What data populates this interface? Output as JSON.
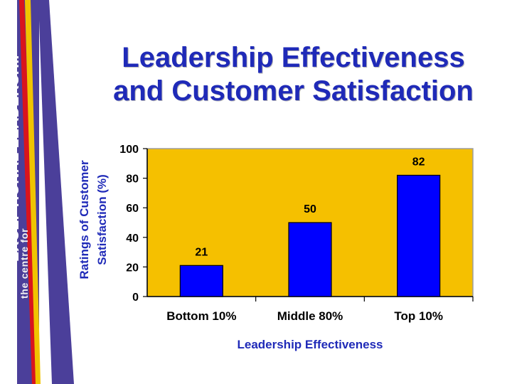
{
  "branding": {
    "top_line": "the centre for",
    "main_line": "EXCEPTIONAL LEADERSHIP"
  },
  "slide": {
    "title_line_1": "Leadership Effectiveness",
    "title_line_2": "and Customer Satisfaction"
  },
  "colors": {
    "accent_blue": "#0000ff",
    "chart_background": "#f5c000",
    "ribbon_purple": "#4b3f9a",
    "ribbon_red": "#d9141d",
    "ribbon_yellow": "#f0c400"
  },
  "chart_data": {
    "type": "bar",
    "categories": [
      "Bottom 10%",
      "Middle 80%",
      "Top 10%"
    ],
    "values": [
      21,
      50,
      82
    ],
    "xlabel": "Leadership Effectiveness",
    "ylabel_lines": [
      "Ratings of Customer",
      "Satisfaction (%)"
    ],
    "ylim": [
      0,
      100
    ],
    "yticks": [
      0,
      20,
      40,
      60,
      80,
      100
    ],
    "data_labels": [
      "21",
      "50",
      "82"
    ],
    "grid": false
  }
}
